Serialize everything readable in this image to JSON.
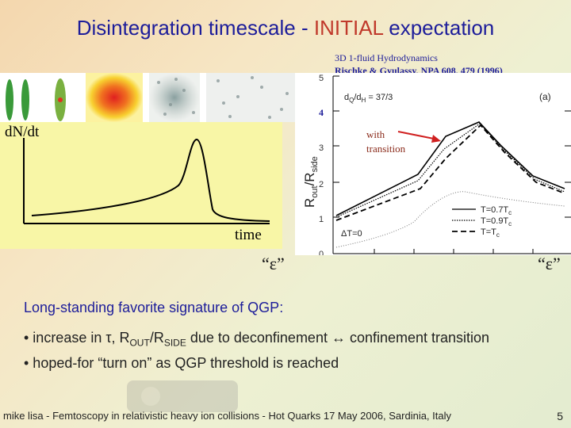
{
  "slide": {
    "title_main": "Disintegration timescale - ",
    "title_highlight": "INITIAL",
    "title_end": " expectation",
    "ref_line1": "3D 1-fluid Hydrodynamics",
    "ref_line2": "Rischke & Gyulassy, NPA 608, 479 (1996)",
    "left_plot": {
      "ylabel": "dN/dt",
      "xlabel": "time"
    },
    "right_plot": {
      "y_ticks": [
        "5",
        "4",
        "3",
        "2",
        "1",
        "0"
      ],
      "ylabel_main": "R",
      "ylabel_out": "out",
      "ylabel_sep": "/R",
      "ylabel_side": "side",
      "param": "d",
      "param_q": "Q",
      "param_sep": "/d",
      "param_h": "H",
      "param_val": " = 37/3",
      "panel_label": "(a)",
      "annotation_line1": "with",
      "annotation_line2": "transition",
      "delta_label": "ΔT=0",
      "legend": [
        "T=0.7T",
        "T=0.9T",
        "T=T"
      ],
      "legend_sub": "c"
    },
    "eps_label": "“ε”",
    "bullets": {
      "heading": "Long-standing favorite signature of QGP:",
      "b1_a": "• increase in τ, R",
      "b1_out": "OUT",
      "b1_b": "/R",
      "b1_side": "SIDE",
      "b1_c": " due to deconfinement ↔ confinement transition",
      "b2": "• hoped-for “turn on” as QGP threshold is reached"
    },
    "footer": "mike lisa - Femtoscopy in relativistic heavy ion collisions - Hot Quarks 17 May 2006, Sardinia, Italy",
    "page_number": "5"
  }
}
